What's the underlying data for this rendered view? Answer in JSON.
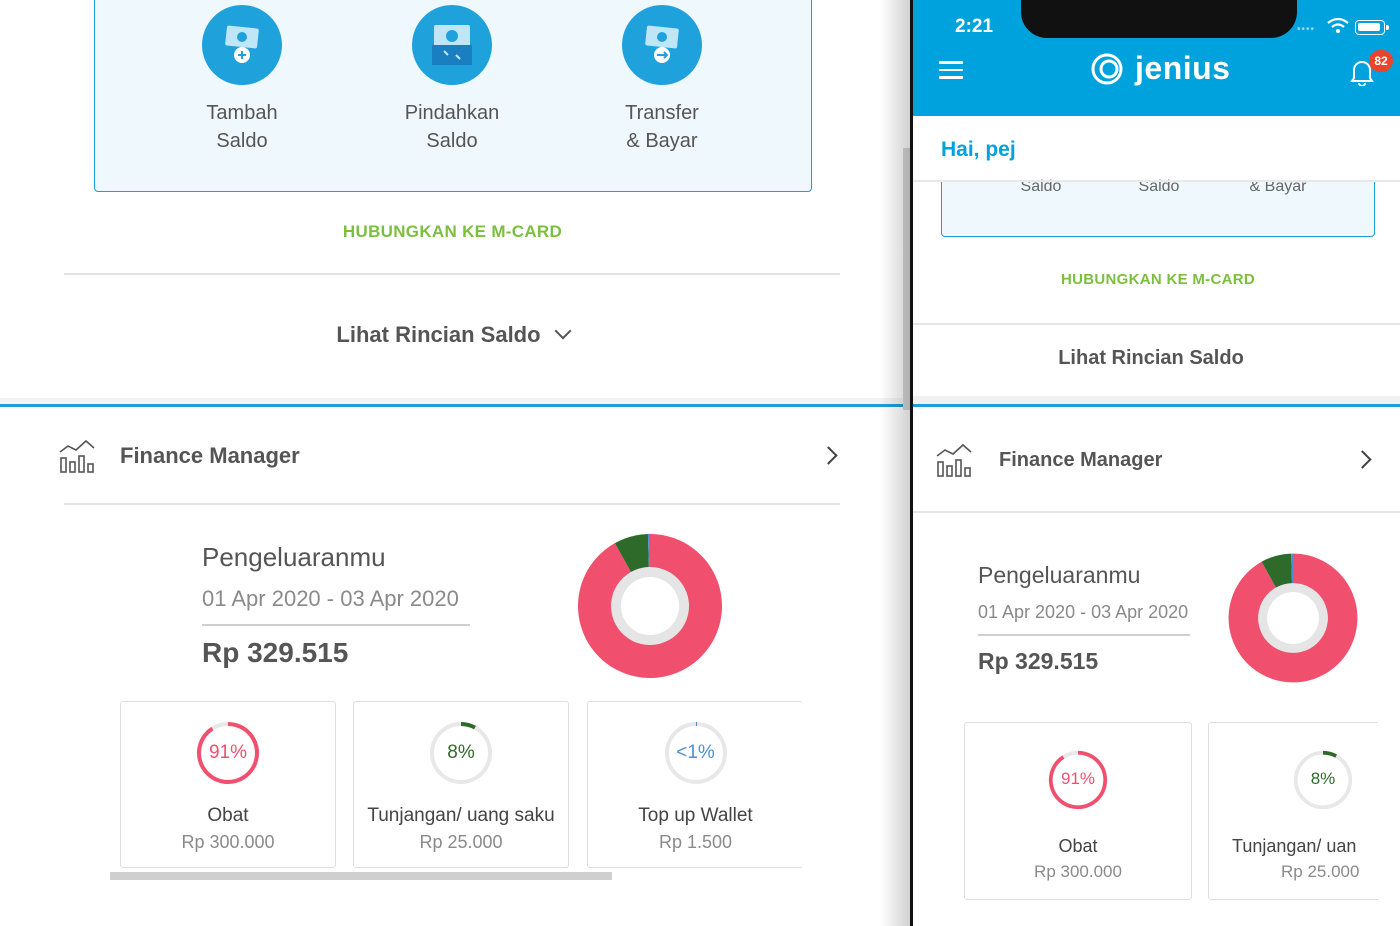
{
  "left": {
    "actions": [
      {
        "line1": "Tambah",
        "line2": "Saldo"
      },
      {
        "line1": "Pindahkan",
        "line2": "Saldo"
      },
      {
        "line1": "Transfer",
        "line2": "& Bayar"
      }
    ],
    "link_mcard": "HUBUNGKAN KE M-CARD",
    "lihat_rincian": "Lihat Rincian Saldo",
    "finance_manager": "Finance Manager",
    "pengeluaran": {
      "title": "Pengeluaranmu",
      "date_range": "01 Apr 2020 - 03 Apr 2020",
      "amount": "Rp 329.515"
    },
    "categories": [
      {
        "percent_label": "91%",
        "percent": 91,
        "name": "Obat",
        "amount": "Rp 300.000",
        "color": "#f0506e"
      },
      {
        "percent_label": "8%",
        "percent": 8,
        "name": "Tunjangan/ uang saku",
        "amount": "Rp 25.000",
        "color": "#2e6b2a"
      },
      {
        "percent_label": "<1%",
        "percent": 0.5,
        "name": "Top up Wallet",
        "amount": "Rp 1.500",
        "color": "#4a90d9"
      }
    ]
  },
  "phone": {
    "status_time": "2:21",
    "brand": "jenius",
    "notification_count": "82",
    "greeting": "Hai, pej",
    "action_labels": [
      "Saldo",
      "Saldo",
      "& Bayar"
    ],
    "link_mcard": "HUBUNGKAN KE M-CARD",
    "lihat_rincian": "Lihat Rincian Saldo",
    "finance_manager": "Finance Manager",
    "pengeluaran": {
      "title": "Pengeluaranmu",
      "date_range": "01 Apr 2020 - 03 Apr 2020",
      "amount": "Rp 329.515"
    },
    "categories": [
      {
        "percent_label": "91%",
        "name": "Obat",
        "amount": "Rp 300.000"
      },
      {
        "percent_label": "8%",
        "name": "Tunjangan/ uan",
        "amount": "Rp 25.000"
      }
    ]
  },
  "colors": {
    "brand_blue": "#00a2dd",
    "green_link": "#7bbf3f",
    "obat_pink": "#f0506e",
    "tunjangan_green": "#2e6b2a",
    "wallet_blue": "#4a90d9"
  },
  "chart_data": {
    "type": "pie",
    "categories": [
      "Obat",
      "Tunjangan/ uang saku",
      "Top up Wallet"
    ],
    "values": [
      300000,
      25000,
      1500
    ],
    "percent": [
      91,
      8,
      0.5
    ]
  }
}
